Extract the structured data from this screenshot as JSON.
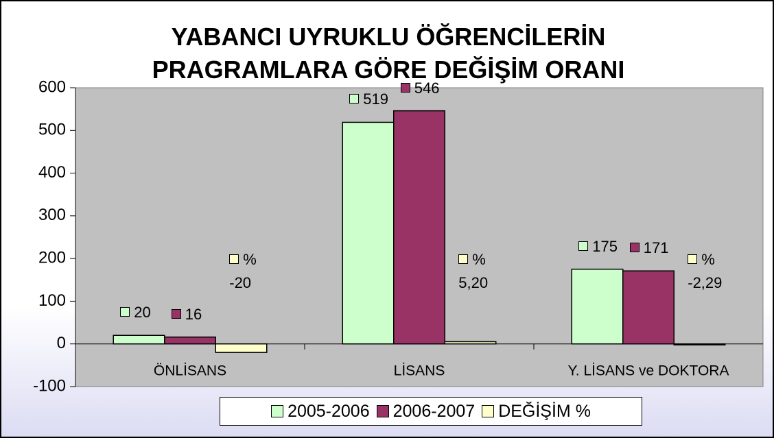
{
  "chart_data": {
    "type": "bar",
    "title": "YABANCI UYRUKLU ÖĞRENCİLERİN\nPRAGRAMLARA GÖRE DEĞİŞİM ORANI",
    "categories": [
      "ÖNLİSANS",
      "LİSANS",
      "Y. LİSANS ve DOKTORA"
    ],
    "series": [
      {
        "name": "2005-2006",
        "color": "#ccffcc",
        "values": [
          20,
          519,
          175
        ]
      },
      {
        "name": "2006-2007",
        "color": "#993366",
        "values": [
          16,
          546,
          171
        ]
      },
      {
        "name": "DEĞİŞİM %",
        "color": "#ffffcc",
        "values": [
          -20,
          5.2,
          -2.29
        ],
        "value_labels": [
          "%\n-20",
          "%\n5,20",
          "%\n-2,29"
        ]
      }
    ],
    "ylim": [
      -100,
      600
    ],
    "yticks": [
      -100,
      0,
      100,
      200,
      300,
      400,
      500,
      600
    ],
    "legend": "bottom"
  }
}
